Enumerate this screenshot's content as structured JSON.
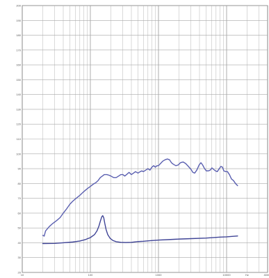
{
  "chart_data": {
    "type": "line",
    "title": "",
    "xlabel": "",
    "ylabel": "",
    "x_unit": "Hz",
    "x_scale": "log",
    "xlim": [
      10,
      40000
    ],
    "ylim": [
      20,
      200
    ],
    "grid": true,
    "legend": "none",
    "x_ticks": [
      {
        "value": 10,
        "label": "10"
      },
      {
        "value": 100,
        "label": "100"
      },
      {
        "value": 1000,
        "label": "1000"
      },
      {
        "value": 10000,
        "label": "10000"
      },
      {
        "value": 20000,
        "label": "Hz"
      },
      {
        "value": 40000,
        "label": "40000"
      }
    ],
    "y_ticks": [
      20,
      30,
      40,
      50,
      60,
      70,
      80,
      90,
      100,
      110,
      120,
      130,
      140,
      150,
      160,
      170,
      180,
      190,
      200
    ],
    "series": [
      {
        "color": "#5a5fb0",
        "points": [
          [
            20,
            45
          ],
          [
            21,
            44.5
          ],
          [
            22,
            48
          ],
          [
            25,
            51
          ],
          [
            28,
            53
          ],
          [
            32,
            55
          ],
          [
            36,
            57
          ],
          [
            40,
            60
          ],
          [
            45,
            63
          ],
          [
            50,
            66
          ],
          [
            55,
            68
          ],
          [
            60,
            69.5
          ],
          [
            70,
            72
          ],
          [
            80,
            74.5
          ],
          [
            90,
            76.5
          ],
          [
            100,
            78
          ],
          [
            110,
            79.5
          ],
          [
            120,
            80.5
          ],
          [
            130,
            82
          ],
          [
            140,
            84
          ],
          [
            150,
            85
          ],
          [
            160,
            86
          ],
          [
            175,
            86
          ],
          [
            190,
            85.5
          ],
          [
            200,
            85
          ],
          [
            220,
            84
          ],
          [
            240,
            84
          ],
          [
            260,
            85
          ],
          [
            280,
            86
          ],
          [
            300,
            86
          ],
          [
            320,
            85
          ],
          [
            340,
            86
          ],
          [
            370,
            87.5
          ],
          [
            400,
            86
          ],
          [
            430,
            87
          ],
          [
            460,
            88
          ],
          [
            500,
            87
          ],
          [
            540,
            88
          ],
          [
            570,
            88.5
          ],
          [
            600,
            88
          ],
          [
            650,
            89
          ],
          [
            700,
            90
          ],
          [
            750,
            89
          ],
          [
            800,
            91
          ],
          [
            850,
            92
          ],
          [
            900,
            91
          ],
          [
            950,
            92
          ],
          [
            1000,
            92
          ],
          [
            1100,
            94
          ],
          [
            1150,
            95
          ],
          [
            1250,
            96
          ],
          [
            1350,
            96.5
          ],
          [
            1450,
            96
          ],
          [
            1550,
            94
          ],
          [
            1650,
            93
          ],
          [
            1800,
            92
          ],
          [
            1950,
            92.5
          ],
          [
            2100,
            94
          ],
          [
            2300,
            94.5
          ],
          [
            2500,
            93.5
          ],
          [
            2750,
            91.5
          ],
          [
            3000,
            89.5
          ],
          [
            3200,
            87.5
          ],
          [
            3400,
            87
          ],
          [
            3650,
            89
          ],
          [
            3950,
            92.5
          ],
          [
            4200,
            94
          ],
          [
            4450,
            92.5
          ],
          [
            4750,
            90
          ],
          [
            5050,
            88.5
          ],
          [
            5400,
            88.5
          ],
          [
            5750,
            89
          ],
          [
            6100,
            90.5
          ],
          [
            6450,
            89.5
          ],
          [
            6850,
            88.5
          ],
          [
            7300,
            88
          ],
          [
            7800,
            90
          ],
          [
            8250,
            91.5
          ],
          [
            8700,
            91
          ],
          [
            9100,
            88.5
          ],
          [
            9700,
            88
          ],
          [
            10300,
            88
          ],
          [
            11000,
            86
          ],
          [
            11800,
            83
          ],
          [
            12600,
            82
          ],
          [
            13500,
            80
          ],
          [
            14500,
            78.5
          ]
        ]
      },
      {
        "color": "#3f4496",
        "points": [
          [
            20,
            39.5
          ],
          [
            30,
            39.6
          ],
          [
            40,
            40
          ],
          [
            55,
            40.5
          ],
          [
            70,
            41.2
          ],
          [
            85,
            42.2
          ],
          [
            100,
            43.5
          ],
          [
            115,
            45.5
          ],
          [
            125,
            48
          ],
          [
            133,
            51
          ],
          [
            140,
            54.5
          ],
          [
            147,
            57.5
          ],
          [
            152,
            58.3
          ],
          [
            157,
            57
          ],
          [
            163,
            53
          ],
          [
            170,
            49
          ],
          [
            180,
            45.5
          ],
          [
            195,
            43
          ],
          [
            215,
            41.5
          ],
          [
            240,
            40.7
          ],
          [
            280,
            40.3
          ],
          [
            330,
            40.2
          ],
          [
            400,
            40.3
          ],
          [
            500,
            40.8
          ],
          [
            600,
            41
          ],
          [
            700,
            41.3
          ],
          [
            1000,
            41.8
          ],
          [
            1500,
            42.2
          ],
          [
            2000,
            42.5
          ],
          [
            3000,
            42.8
          ],
          [
            5000,
            43.2
          ],
          [
            8000,
            43.8
          ],
          [
            10000,
            44
          ],
          [
            12000,
            44.3
          ],
          [
            14500,
            44.6
          ]
        ]
      }
    ]
  }
}
